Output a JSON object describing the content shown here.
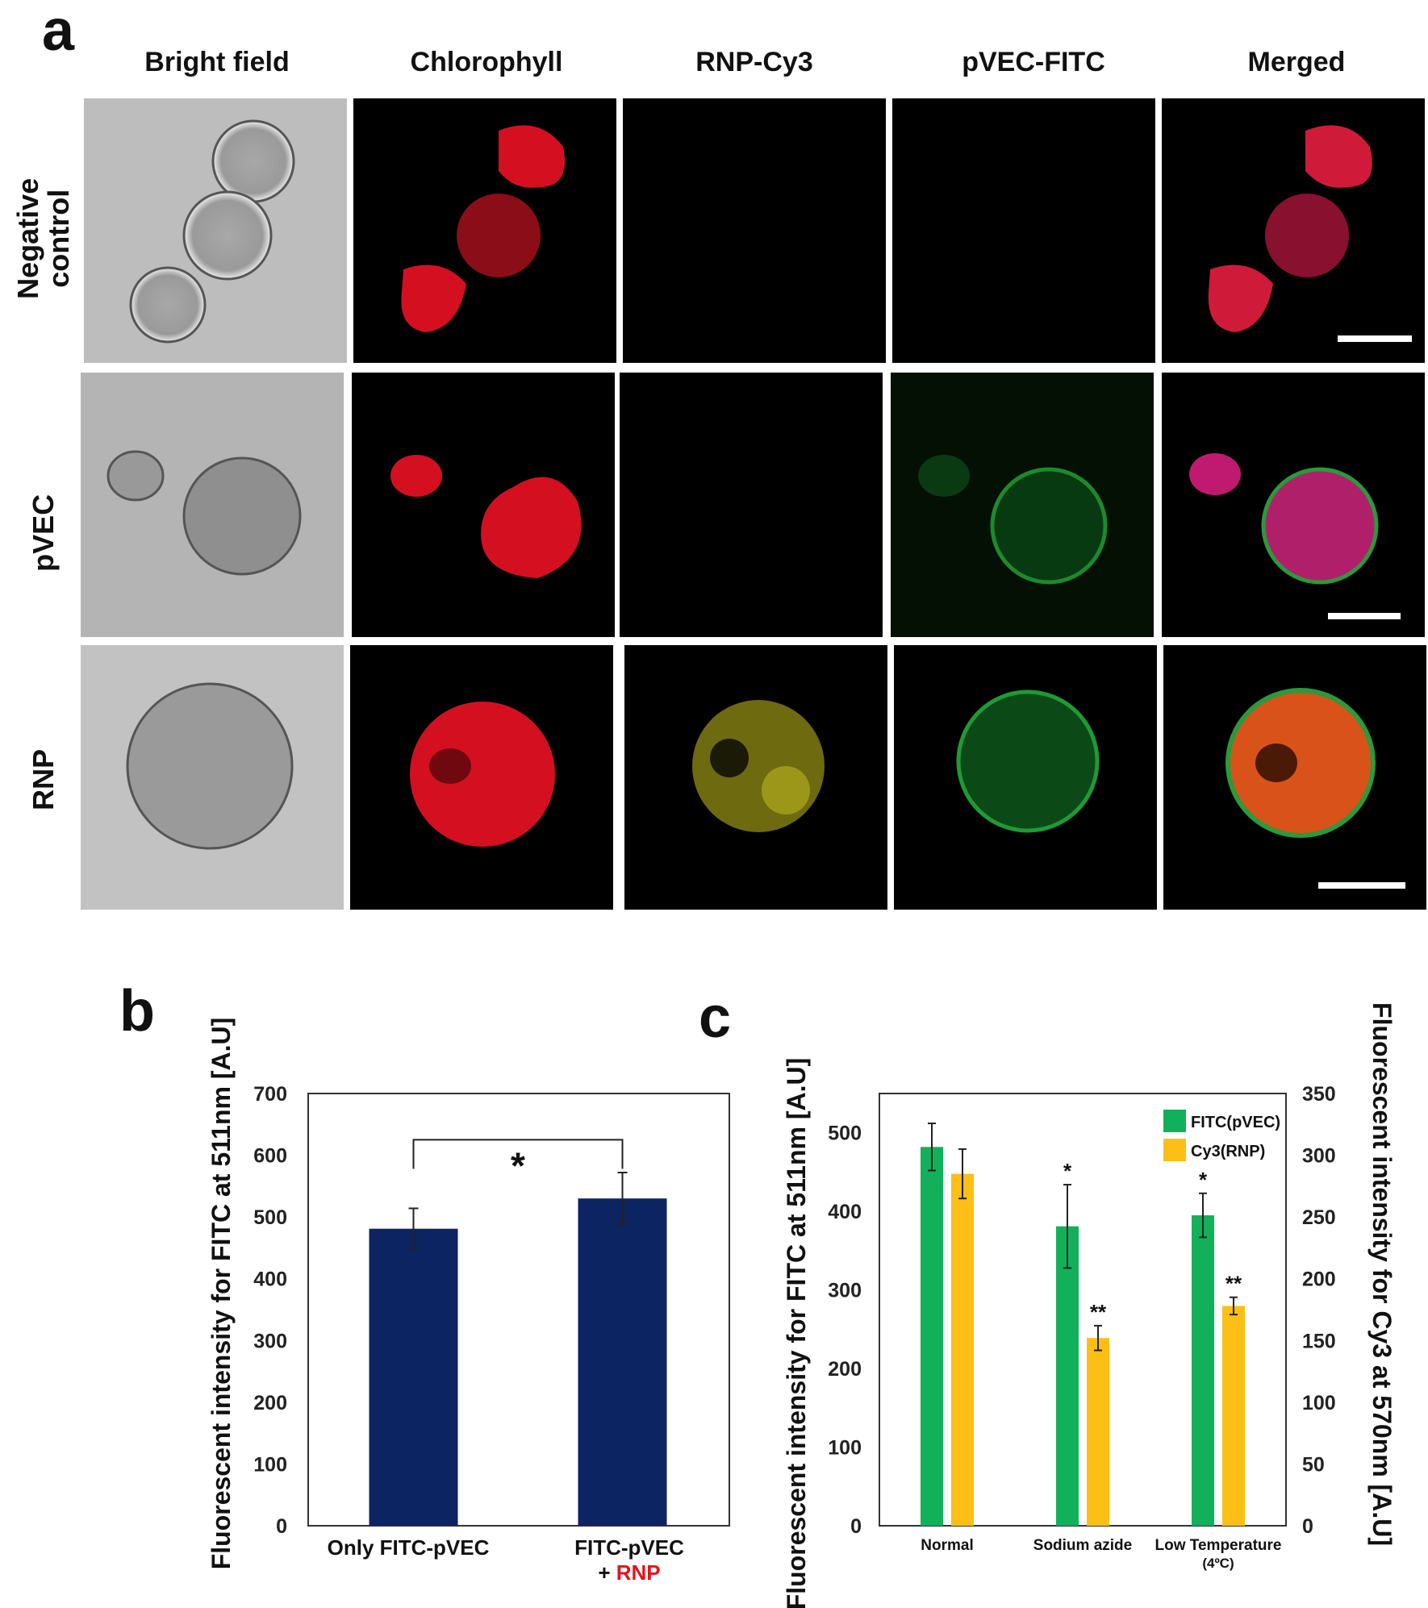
{
  "panel_a": {
    "letter": "a",
    "columns": [
      "Bright field",
      "Chlorophyll",
      "RNP-Cy3",
      "pVEC-FITC",
      "Merged"
    ],
    "rows": [
      {
        "label_line1": "Negative",
        "label_line2": "control"
      },
      {
        "label_line1": "pVEC",
        "label_line2": ""
      },
      {
        "label_line1": "RNP",
        "label_line2": ""
      }
    ]
  },
  "panel_b": {
    "letter": "b",
    "significance": "*",
    "x_label_line1_a": "Only FITC-pVEC",
    "x_label_line1_b": "FITC-pVEC",
    "x_label_line2_prefix": "+ ",
    "x_label_line2_highlight": "RNP",
    "highlight_color": "#e8121b"
  },
  "panel_c": {
    "letter": "c",
    "legend": [
      "FITC(pVEC)",
      "Cy3(RNP)"
    ]
  },
  "chart_data": [
    {
      "type": "bar",
      "panel": "b",
      "categories": [
        "Only FITC-pVEC",
        "FITC-pVEC + RNP"
      ],
      "values": [
        481,
        530
      ],
      "errors": [
        33,
        42
      ],
      "ylabel": "Fluorescent intensity for FITC at 511nm [A.U]",
      "ylim": [
        0,
        700
      ],
      "yticks": [
        0,
        100,
        200,
        300,
        400,
        500,
        600,
        700
      ],
      "color": "#0d2462",
      "grid": false
    },
    {
      "type": "bar",
      "panel": "c",
      "categories": [
        "Normal",
        "Sodium azide",
        "Low Temperature"
      ],
      "category_sublabels": [
        "",
        "",
        "(4ºC)"
      ],
      "series": [
        {
          "name": "FITC(pVEC)",
          "axis": "left",
          "values": [
            482,
            381,
            395
          ],
          "errors": [
            30,
            53,
            28
          ],
          "stars": [
            "",
            "*",
            "*"
          ],
          "color": "#12b05a"
        },
        {
          "name": "Cy3(RNP)",
          "axis": "right",
          "values": [
            285,
            152,
            178
          ],
          "errors": [
            20,
            10,
            7
          ],
          "stars": [
            "",
            "**",
            "**"
          ],
          "color": "#fbbf16"
        }
      ],
      "ylabel_left": "Fluorescent intensity for FITC at 511nm [A.U]",
      "ylabel_right": "Fluorescent intensity for Cy3 at 570nm [A.U]",
      "ylim_left": [
        0,
        550
      ],
      "yticks_left": [
        0,
        100,
        200,
        300,
        400,
        500
      ],
      "ylim_right": [
        0,
        350
      ],
      "yticks_right": [
        0,
        50,
        100,
        150,
        200,
        250,
        300,
        350
      ],
      "legend_position": "top-right",
      "grid": false
    }
  ]
}
